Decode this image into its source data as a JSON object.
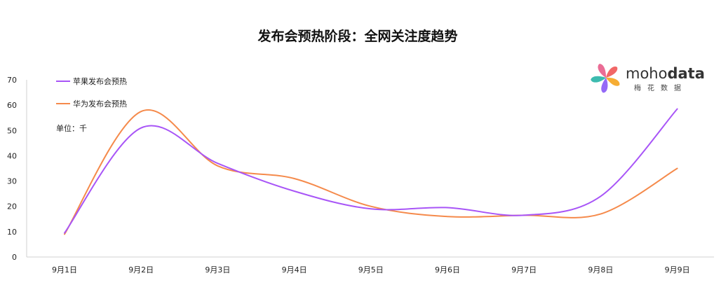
{
  "chart_data": {
    "type": "line",
    "title": "发布会预热阶段：全网关注度趋势",
    "categories": [
      "9月1日",
      "9月2日",
      "9月3日",
      "9月4日",
      "9月5日",
      "9月6日",
      "9月7日",
      "9月8日",
      "9月9日"
    ],
    "series": [
      {
        "name": "苹果发布会预热",
        "color": "#a855f7",
        "values": [
          9.5,
          51,
          37,
          26,
          19,
          19.5,
          16.5,
          24,
          58.5
        ]
      },
      {
        "name": "华为发布会预热",
        "color": "#f58a4b",
        "values": [
          9,
          57.5,
          36,
          31,
          20,
          16,
          16.5,
          17,
          35
        ]
      }
    ],
    "ylim": [
      0,
      70
    ],
    "yticks": [
      0,
      10,
      20,
      30,
      40,
      50,
      60,
      70
    ],
    "unit_label": "单位：千",
    "grid": false,
    "legend_position": "top-left"
  },
  "logo": {
    "text_light": "moho",
    "text_bold": "data",
    "subtitle": "梅花数据",
    "colors": [
      "#f05a5a",
      "#f5a623",
      "#8b5cf6",
      "#2bb5a8",
      "#e8608c"
    ]
  }
}
